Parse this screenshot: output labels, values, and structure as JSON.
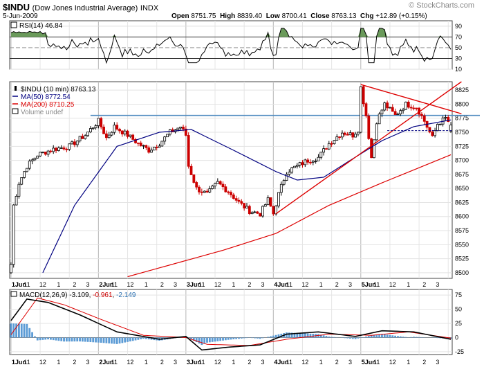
{
  "header": {
    "symbol": "$INDU",
    "description": "(Dow Jones Industrial Average)",
    "exchange": "INDX",
    "date": "5-Jun-2009",
    "open_label": "Open",
    "open": "8751.75",
    "high_label": "High",
    "high": "8839.40",
    "low_label": "Low",
    "low": "8700.41",
    "close_label": "Close",
    "close": "8763.13",
    "chg_label": "Chg",
    "chg": "+12.89 (+0.15%)",
    "brand": "© StockCharts.com"
  },
  "colors": {
    "price_up": "#000000",
    "price_down": "#cc0000",
    "ma50": "#000080",
    "ma200": "#dd0000",
    "trend": "#dd0000",
    "resistance": "#4f8bbf",
    "rsi_fill": "#6a9a5a",
    "macd_hist": "#5b9bd5",
    "macd_signal": "#dd0000"
  },
  "rsi": {
    "legend": "RSI(14) 46.84",
    "ticks": [
      "90",
      "70",
      "50",
      "30",
      "10"
    ]
  },
  "price": {
    "legend_symbol": "$INDU (10 min) 8763.13",
    "legend_ma50": "MA(50) 8772.54",
    "legend_ma200": "MA(200) 8710.25",
    "legend_volume": "Volume undef",
    "ticks": [
      "8825",
      "8800",
      "8775",
      "8750",
      "8725",
      "8700",
      "8675",
      "8650",
      "8625",
      "8600",
      "8575",
      "8550",
      "8525",
      "8500"
    ]
  },
  "xaxis": {
    "labels": [
      "1Jun",
      "11",
      "12",
      "1",
      "2",
      "3",
      "2Jun",
      "11",
      "12",
      "1",
      "2",
      "3",
      "3Jun",
      "11",
      "12",
      "1",
      "2",
      "3",
      "4Jun",
      "11",
      "12",
      "1",
      "2",
      "3",
      "5Jun",
      "11",
      "12",
      "1",
      "2",
      "3"
    ],
    "day_labels": [
      "1Jun",
      "2Jun",
      "3Jun",
      "4Jun",
      "5Jun"
    ]
  },
  "macd": {
    "legend_name": "MACD(12,26,9)",
    "legend_macd": "-3.109",
    "legend_signal": "-0.961",
    "legend_hist": "-2.149",
    "ticks": [
      "75",
      "50",
      "25",
      "0",
      "-25"
    ]
  },
  "chart_data": {
    "type": "line",
    "title": "$INDU (Dow Jones Industrial Average) INDX",
    "interval": "10 min",
    "price_range": [
      8490,
      8840
    ],
    "x_day_starts": [
      "1Jun",
      "2Jun",
      "3Jun",
      "4Jun",
      "5Jun"
    ],
    "close_keypoints": [
      {
        "bar": 0,
        "v": 8515
      },
      {
        "bar": 1,
        "v": 8620
      },
      {
        "bar": 3,
        "v": 8660
      },
      {
        "bar": 6,
        "v": 8690
      },
      {
        "bar": 10,
        "v": 8710
      },
      {
        "bar": 16,
        "v": 8720
      },
      {
        "bar": 22,
        "v": 8725
      },
      {
        "bar": 28,
        "v": 8745
      },
      {
        "bar": 33,
        "v": 8770
      },
      {
        "bar": 36,
        "v": 8740
      },
      {
        "bar": 39,
        "v": 8760
      },
      {
        "bar": 44,
        "v": 8745
      },
      {
        "bar": 48,
        "v": 8730
      },
      {
        "bar": 52,
        "v": 8718
      },
      {
        "bar": 56,
        "v": 8730
      },
      {
        "bar": 60,
        "v": 8750
      },
      {
        "bar": 64,
        "v": 8760
      },
      {
        "bar": 66,
        "v": 8745
      },
      {
        "bar": 67,
        "v": 8690
      },
      {
        "bar": 70,
        "v": 8650
      },
      {
        "bar": 74,
        "v": 8640
      },
      {
        "bar": 78,
        "v": 8660
      },
      {
        "bar": 82,
        "v": 8645
      },
      {
        "bar": 86,
        "v": 8625
      },
      {
        "bar": 90,
        "v": 8610
      },
      {
        "bar": 94,
        "v": 8605
      },
      {
        "bar": 97,
        "v": 8630
      },
      {
        "bar": 99,
        "v": 8605
      },
      {
        "bar": 101,
        "v": 8640
      },
      {
        "bar": 104,
        "v": 8680
      },
      {
        "bar": 108,
        "v": 8690
      },
      {
        "bar": 112,
        "v": 8700
      },
      {
        "bar": 116,
        "v": 8705
      },
      {
        "bar": 120,
        "v": 8730
      },
      {
        "bar": 125,
        "v": 8750
      },
      {
        "bar": 129,
        "v": 8745
      },
      {
        "bar": 131,
        "v": 8755
      },
      {
        "bar": 132,
        "v": 8830
      },
      {
        "bar": 134,
        "v": 8780
      },
      {
        "bar": 136,
        "v": 8705
      },
      {
        "bar": 138,
        "v": 8770
      },
      {
        "bar": 141,
        "v": 8800
      },
      {
        "bar": 145,
        "v": 8780
      },
      {
        "bar": 149,
        "v": 8800
      },
      {
        "bar": 153,
        "v": 8795
      },
      {
        "bar": 156,
        "v": 8770
      },
      {
        "bar": 159,
        "v": 8740
      },
      {
        "bar": 161,
        "v": 8765
      },
      {
        "bar": 164,
        "v": 8775
      },
      {
        "bar": 166,
        "v": 8763
      }
    ],
    "series": [
      {
        "name": "MA(50)",
        "last": 8772.54
      },
      {
        "name": "MA(200)",
        "last": 8710.25
      }
    ],
    "ma200_keypoints": [
      {
        "bar": 44,
        "v": 8493
      },
      {
        "bar": 80,
        "v": 8540
      },
      {
        "bar": 100,
        "v": 8570
      },
      {
        "bar": 120,
        "v": 8620
      },
      {
        "bar": 140,
        "v": 8660
      },
      {
        "bar": 166,
        "v": 8710
      }
    ],
    "ma50_keypoints": [
      {
        "bar": 12,
        "v": 8500
      },
      {
        "bar": 24,
        "v": 8620
      },
      {
        "bar": 40,
        "v": 8725
      },
      {
        "bar": 56,
        "v": 8750
      },
      {
        "bar": 68,
        "v": 8755
      },
      {
        "bar": 84,
        "v": 8718
      },
      {
        "bar": 100,
        "v": 8680
      },
      {
        "bar": 108,
        "v": 8665
      },
      {
        "bar": 118,
        "v": 8670
      },
      {
        "bar": 128,
        "v": 8700
      },
      {
        "bar": 140,
        "v": 8735
      },
      {
        "bar": 152,
        "v": 8760
      },
      {
        "bar": 166,
        "v": 8772
      }
    ],
    "annotations": [
      {
        "type": "horizontal",
        "value": 8780,
        "from_bar": 30,
        "to_bar": 166
      },
      {
        "type": "trendline",
        "from": {
          "bar": 100,
          "v": 8605
        },
        "to": {
          "bar": 170,
          "v": 8840
        }
      },
      {
        "type": "trendline",
        "from": {
          "bar": 132,
          "v": 8835
        },
        "to": {
          "bar": 170,
          "v": 8783
        }
      },
      {
        "type": "dashed",
        "value": 8753,
        "from_bar": 142,
        "to_bar": 166
      }
    ],
    "rsi_last": 46.84,
    "rsi_range": [
      10,
      100
    ],
    "macd_last": {
      "macd": -3.109,
      "signal": -0.961,
      "histogram": -2.149
    },
    "macd_range": [
      -30,
      85
    ]
  }
}
